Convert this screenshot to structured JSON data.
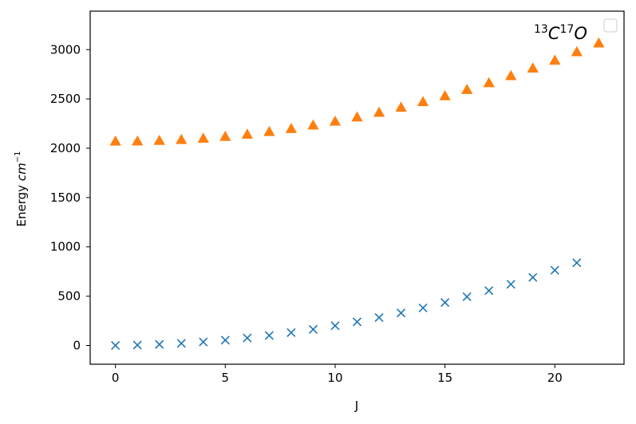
{
  "chart_data": {
    "type": "scatter",
    "title": {
      "iso1": "13",
      "el1": "C",
      "iso2": "17",
      "el2": "O"
    },
    "xlabel": "J",
    "ylabel": {
      "text": "Energy ",
      "unit": "cm",
      "exp": "−1"
    },
    "xlim": [
      -1.15,
      23.15
    ],
    "ylim": [
      -190,
      3390
    ],
    "xticks": [
      0,
      5,
      10,
      15,
      20
    ],
    "yticks": [
      0,
      500,
      1000,
      1500,
      2000,
      2500,
      3000
    ],
    "grid": false,
    "legend": "top-right, empty",
    "series": [
      {
        "marker": "x",
        "color": "#1f77b4",
        "x": [
          0,
          1,
          2,
          3,
          4,
          5,
          6,
          7,
          8,
          9,
          10,
          11,
          12,
          13,
          14,
          15,
          16,
          17,
          18,
          19,
          20,
          21
        ],
        "y": [
          0,
          4,
          11,
          22,
          36,
          54,
          76,
          101,
          131,
          163,
          200,
          240,
          283,
          330,
          381,
          436,
          494,
          556,
          621,
          690,
          763,
          839
        ]
      },
      {
        "marker": "^",
        "color": "#ff7f0e",
        "x": [
          0,
          1,
          2,
          3,
          4,
          5,
          6,
          7,
          8,
          9,
          10,
          11,
          12,
          13,
          14,
          15,
          16,
          17,
          18,
          19,
          20,
          21,
          22
        ],
        "y": [
          2065,
          2066,
          2072,
          2081,
          2095,
          2113,
          2135,
          2162,
          2193,
          2228,
          2267,
          2310,
          2357,
          2409,
          2465,
          2525,
          2589,
          2657,
          2729,
          2806,
          2886,
          2971,
          3060
        ]
      }
    ]
  }
}
